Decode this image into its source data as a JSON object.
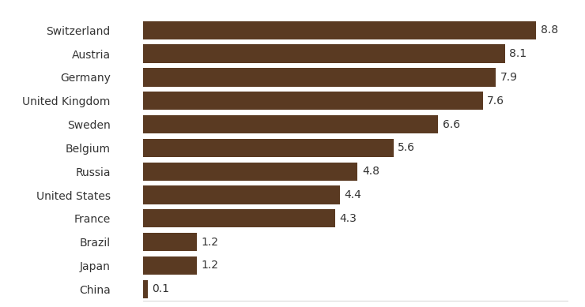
{
  "chart_data": {
    "type": "bar",
    "orientation": "horizontal",
    "categories": [
      "Switzerland",
      "Austria",
      "Germany",
      "United Kingdom",
      "Sweden",
      "Belgium",
      "Russia",
      "United States",
      "France",
      "Brazil",
      "Japan",
      "China"
    ],
    "values": [
      8.8,
      8.1,
      7.9,
      7.6,
      6.6,
      5.6,
      4.8,
      4.4,
      4.3,
      1.2,
      1.2,
      0.1
    ],
    "color": "#5a3a22",
    "xlim": [
      0,
      9.5
    ],
    "data_labels": true,
    "tick_labels": "y",
    "grid": false
  }
}
